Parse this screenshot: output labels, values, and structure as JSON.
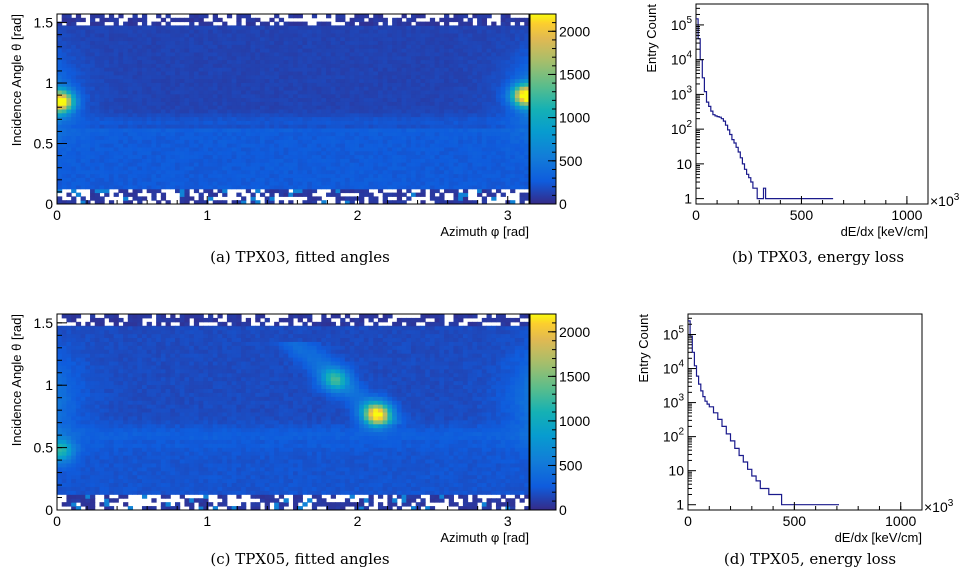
{
  "chart_data": [
    {
      "panel": "a",
      "type": "heatmap",
      "caption_label": "(a)",
      "caption_text": "TPX03, fitted angles",
      "xlabel": "Azimuth φ [rad]",
      "ylabel": "Incidence Angle θ [rad]",
      "xlim": [
        0,
        3.14159
      ],
      "ylim": [
        0,
        1.5708
      ],
      "xticks": [
        0,
        1,
        2,
        3
      ],
      "xtick_labels": [
        "0",
        "1",
        "2",
        "3"
      ],
      "yticks": [
        0,
        0.5,
        1,
        1.5
      ],
      "ytick_labels": [
        "0",
        "0.5",
        "1",
        "1.5"
      ],
      "zlim": [
        0,
        2200
      ],
      "zticks": [
        0,
        500,
        1000,
        1500,
        2000
      ],
      "ztick_labels": [
        "0",
        "500",
        "1000",
        "1500",
        "2000"
      ],
      "colormap": "parula",
      "features": {
        "band_theta_max": 0.63,
        "band_level": 260,
        "upper_level": 130,
        "hotspots": [
          {
            "phi": 0.02,
            "theta": 0.85,
            "level": 2100
          },
          {
            "phi": 3.12,
            "theta": 0.9,
            "level": 2100
          }
        ]
      }
    },
    {
      "panel": "b",
      "type": "line",
      "caption_label": "(b)",
      "caption_text": "TPX03, energy loss",
      "xlabel": "dE/dx [keV/cm]",
      "ylabel": "Entry Count",
      "xscale_label": "×10",
      "xscale_exp": "3",
      "xlim": [
        0,
        1100
      ],
      "xticks": [
        0,
        500,
        1000
      ],
      "xtick_labels": [
        "0",
        "500",
        "1000"
      ],
      "yscale": "log",
      "ylim": [
        0.7,
        400000
      ],
      "yticks": [
        1,
        10,
        100,
        1000,
        10000,
        100000
      ],
      "ytick_labels": [
        [
          "1",
          ""
        ],
        [
          "10",
          ""
        ],
        [
          "10",
          "2"
        ],
        [
          "10",
          "3"
        ],
        [
          "10",
          "4"
        ],
        [
          "10",
          "5"
        ]
      ],
      "series": [
        {
          "color": "#1a1a8c",
          "x": [
            0,
            10,
            20,
            30,
            40,
            50,
            60,
            70,
            80,
            90,
            100,
            110,
            120,
            130,
            140,
            150,
            160,
            170,
            180,
            190,
            200,
            210,
            220,
            230,
            240,
            250,
            260,
            270,
            280,
            290,
            300,
            310,
            320,
            330,
            340,
            350,
            360,
            380,
            400,
            420,
            450,
            480,
            520,
            560,
            600,
            640
          ],
          "y": [
            150000,
            40000,
            10000,
            3000,
            1200,
            600,
            450,
            330,
            260,
            240,
            230,
            220,
            200,
            170,
            130,
            95,
            70,
            50,
            40,
            30,
            22,
            15,
            10,
            7,
            5,
            4,
            3,
            2,
            2,
            1,
            1,
            1,
            2,
            1,
            1,
            1,
            1,
            1,
            1,
            1,
            1,
            1,
            1,
            1,
            1,
            1
          ]
        }
      ]
    },
    {
      "panel": "c",
      "type": "heatmap",
      "caption_label": "(c)",
      "caption_text": "TPX05, fitted angles",
      "xlabel": "Azimuth φ [rad]",
      "ylabel": "Incidence Angle θ [rad]",
      "xlim": [
        0,
        3.14159
      ],
      "ylim": [
        0,
        1.5708
      ],
      "xticks": [
        0,
        1,
        2,
        3
      ],
      "xtick_labels": [
        "0",
        "1",
        "2",
        "3"
      ],
      "yticks": [
        0,
        0.5,
        1,
        1.5
      ],
      "ytick_labels": [
        "0",
        "0.5",
        "1",
        "1.5"
      ],
      "zlim": [
        0,
        2200
      ],
      "zticks": [
        0,
        500,
        1000,
        1500,
        2000
      ],
      "ztick_labels": [
        "0",
        "500",
        "1000",
        "1500",
        "2000"
      ],
      "colormap": "parula",
      "features": {
        "band_theta_max": 0.52,
        "band_level": 220,
        "upper_level": 170,
        "hotspots": [
          {
            "phi": 2.13,
            "theta": 0.77,
            "level": 2000
          },
          {
            "phi": 1.85,
            "theta": 1.05,
            "level": 900
          },
          {
            "phi": 0.02,
            "theta": 0.48,
            "level": 900
          }
        ]
      }
    },
    {
      "panel": "d",
      "type": "line",
      "caption_label": "(d)",
      "caption_text": "TPX05, energy loss",
      "xlabel": "dE/dx [keV/cm]",
      "ylabel": "Entry Count",
      "xscale_label": "×10",
      "xscale_exp": "3",
      "xlim": [
        0,
        1100
      ],
      "xticks": [
        0,
        500,
        1000
      ],
      "xtick_labels": [
        "0",
        "500",
        "1000"
      ],
      "yscale": "log",
      "ylim": [
        0.7,
        400000
      ],
      "yticks": [
        1,
        10,
        100,
        1000,
        10000,
        100000
      ],
      "ytick_labels": [
        [
          "1",
          ""
        ],
        [
          "10",
          ""
        ],
        [
          "10",
          "2"
        ],
        [
          "10",
          "3"
        ],
        [
          "10",
          "4"
        ],
        [
          "10",
          "5"
        ]
      ],
      "series": [
        {
          "color": "#1a1a8c",
          "x": [
            0,
            10,
            20,
            30,
            40,
            50,
            60,
            70,
            80,
            90,
            100,
            120,
            140,
            160,
            180,
            200,
            220,
            240,
            260,
            280,
            300,
            320,
            340,
            360,
            380,
            400,
            420,
            440,
            460,
            480,
            500,
            540,
            580,
            620,
            660,
            700
          ],
          "y": [
            250000,
            90000,
            30000,
            12000,
            6000,
            3500,
            2200,
            1500,
            1100,
            900,
            750,
            500,
            320,
            200,
            120,
            75,
            45,
            28,
            18,
            11,
            7,
            5,
            3,
            3,
            2,
            2,
            2,
            1,
            1,
            1,
            1,
            1,
            1,
            1,
            1,
            1
          ]
        }
      ]
    }
  ]
}
